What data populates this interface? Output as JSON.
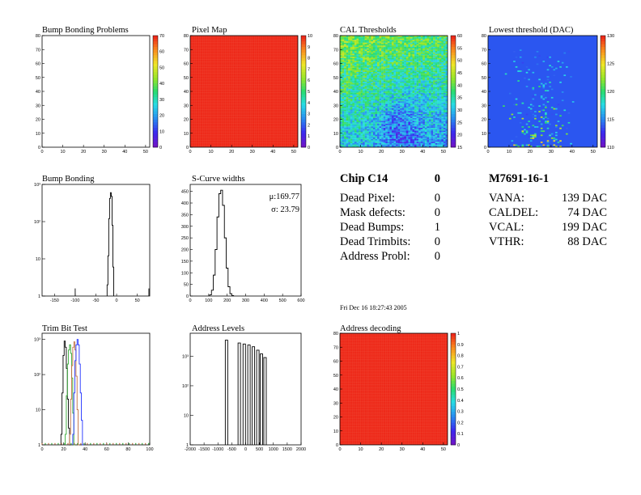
{
  "colors": {
    "hot_red": "#ee2a1a",
    "frame": "#000000",
    "trim_blue": "#2233ff",
    "trim_green": "#33aa33",
    "trim_orange": "#c07040",
    "low_bg": "#2b56f0"
  },
  "chart_data": [
    {
      "id": "bump-map",
      "type": "heatmap",
      "title": "Bump Bonding Problems",
      "x_ticks": [
        "0",
        "10",
        "20",
        "30",
        "40",
        "50"
      ],
      "y_ticks": [
        "0",
        "10",
        "20",
        "30",
        "40",
        "50",
        "60",
        "70",
        "80"
      ],
      "z_ticks": [
        "0",
        "10",
        "20",
        "30",
        "40",
        "50",
        "60",
        "70"
      ],
      "pattern": "empty",
      "xlim": [
        0,
        52
      ],
      "ylim": [
        0,
        80
      ]
    },
    {
      "id": "pixel-map",
      "type": "heatmap",
      "title": "Pixel Map",
      "x_ticks": [
        "0",
        "10",
        "20",
        "30",
        "40",
        "50"
      ],
      "y_ticks": [
        "0",
        "10",
        "20",
        "30",
        "40",
        "50",
        "60",
        "70",
        "80"
      ],
      "z_ticks": [
        "0",
        "1",
        "2",
        "3",
        "4",
        "5",
        "6",
        "7",
        "8",
        "9",
        "10"
      ],
      "pattern": "uniform-max",
      "xlim": [
        0,
        52
      ],
      "ylim": [
        0,
        80
      ]
    },
    {
      "id": "cal-map",
      "type": "heatmap",
      "title": "CAL Thresholds",
      "x_ticks": [
        "0",
        "10",
        "20",
        "30",
        "40",
        "50"
      ],
      "y_ticks": [
        "0",
        "10",
        "20",
        "30",
        "40",
        "50",
        "60",
        "70",
        "80"
      ],
      "z_ticks": [
        "15",
        "20",
        "25",
        "30",
        "35",
        "40",
        "45",
        "50",
        "55",
        "60"
      ],
      "pattern": "noisy-gradient",
      "xlim": [
        0,
        52
      ],
      "ylim": [
        0,
        80
      ]
    },
    {
      "id": "low-map",
      "type": "heatmap",
      "title": "Lowest threshold (DAC)",
      "x_ticks": [
        "0",
        "10",
        "20",
        "30",
        "40",
        "50"
      ],
      "y_ticks": [
        "0",
        "10",
        "20",
        "30",
        "40",
        "50",
        "60",
        "70",
        "80"
      ],
      "z_ticks": [
        "110",
        "115",
        "120",
        "125",
        "130"
      ],
      "pattern": "sparse-hotspots",
      "xlim": [
        0,
        52
      ],
      "ylim": [
        0,
        80
      ]
    },
    {
      "id": "bump-hist",
      "type": "line",
      "title": "Bump Bonding",
      "log_y": true,
      "x_ticks": [
        "-150",
        "-100",
        "-50",
        "0",
        "50"
      ],
      "y_ticks": [
        "1",
        "10",
        "10²",
        "10³"
      ],
      "xlim": [
        -180,
        80
      ],
      "ylim": [
        1,
        1000
      ],
      "x": [
        -22,
        -20,
        -18,
        -16,
        -14,
        -12,
        -10,
        -8
      ],
      "values": [
        2,
        12,
        120,
        420,
        600,
        480,
        80,
        6
      ]
    },
    {
      "id": "scurve-hist",
      "type": "line",
      "title": "S-Curve widths",
      "log_y": false,
      "x_ticks": [
        "0",
        "100",
        "200",
        "300",
        "400",
        "500",
        "600"
      ],
      "y_ticks": [
        "0",
        "50",
        "100",
        "150",
        "200",
        "250",
        "300",
        "350",
        "400",
        "450"
      ],
      "xlim": [
        0,
        600
      ],
      "ylim": [
        0,
        480
      ],
      "x": [
        110,
        120,
        130,
        140,
        150,
        160,
        170,
        180,
        190,
        200,
        210,
        220,
        230
      ],
      "values": [
        5,
        25,
        90,
        200,
        340,
        440,
        455,
        390,
        250,
        120,
        40,
        10,
        2
      ],
      "stats": {
        "mean": "μ:169.77",
        "sigma": "σ: 23.79"
      }
    },
    {
      "id": "trim-hist",
      "type": "line",
      "title": "Trim Bit Test",
      "log_y": true,
      "x_ticks": [
        "0",
        "20",
        "40",
        "60",
        "80",
        "100"
      ],
      "y_ticks": [
        "1",
        "10",
        "10²",
        "10³"
      ],
      "xlim": [
        0,
        100
      ],
      "ylim": [
        1,
        1500
      ],
      "series": [
        {
          "color": "#000000",
          "x": [
            18,
            19,
            20,
            21,
            22,
            23,
            24,
            25,
            26
          ],
          "values": [
            2,
            30,
            350,
            900,
            600,
            150,
            20,
            3,
            1
          ]
        },
        {
          "color": "#33aa33",
          "x": [
            22,
            23,
            24,
            25,
            26,
            27,
            28,
            29,
            30
          ],
          "values": [
            2,
            25,
            200,
            500,
            700,
            400,
            80,
            8,
            1
          ]
        },
        {
          "color": "#c07040",
          "x": [
            26,
            27,
            28,
            29,
            30,
            31,
            32,
            33,
            34
          ],
          "values": [
            2,
            20,
            180,
            600,
            850,
            500,
            90,
            10,
            1
          ]
        },
        {
          "color": "#2233ff",
          "x": [
            29,
            30,
            31,
            32,
            33,
            34,
            35,
            36,
            37,
            38
          ],
          "values": [
            2,
            30,
            250,
            700,
            1000,
            700,
            200,
            30,
            5,
            1
          ]
        }
      ]
    },
    {
      "id": "addr-hist",
      "type": "line",
      "title": "Address Levels",
      "log_y": true,
      "x_ticks": [
        "-2000",
        "-1500",
        "-1000",
        "-500",
        "0",
        "500",
        "1000",
        "1500",
        "2000"
      ],
      "y_ticks": [
        "1",
        "10",
        "10²",
        "10³"
      ],
      "xlim": [
        -2000,
        2000
      ],
      "ylim": [
        1,
        6000
      ],
      "peaks": [
        {
          "x": -690,
          "h": 3500
        },
        {
          "x": -230,
          "h": 2800
        },
        {
          "x": -50,
          "h": 2600
        },
        {
          "x": 120,
          "h": 2400
        },
        {
          "x": 280,
          "h": 2100
        },
        {
          "x": 440,
          "h": 1600
        },
        {
          "x": 570,
          "h": 1200
        },
        {
          "x": 700,
          "h": 900
        }
      ]
    },
    {
      "id": "addr-map",
      "type": "heatmap",
      "title": "Address decoding",
      "x_ticks": [
        "0",
        "10",
        "20",
        "30",
        "40",
        "50"
      ],
      "y_ticks": [
        "0",
        "10",
        "20",
        "30",
        "40",
        "50",
        "60",
        "70",
        "80"
      ],
      "z_ticks": [
        "0",
        "0.1",
        "0.2",
        "0.3",
        "0.4",
        "0.5",
        "0.6",
        "0.7",
        "0.8",
        "0.9",
        "1"
      ],
      "pattern": "uniform-max",
      "xlim": [
        0,
        52
      ],
      "ylim": [
        0,
        80
      ]
    }
  ],
  "chip": {
    "title": "Chip C14",
    "number": "0",
    "rows": [
      {
        "label": "Dead Pixel:",
        "value": "0"
      },
      {
        "label": "Mask defects:",
        "value": "0"
      },
      {
        "label": "Dead Bumps:",
        "value": "1"
      },
      {
        "label": "Dead Trimbits:",
        "value": "0"
      },
      {
        "label": "Address Probl:",
        "value": "0"
      }
    ]
  },
  "module": {
    "title": "M7691-16-1",
    "rows": [
      {
        "label": "VANA:",
        "value": "139 DAC"
      },
      {
        "label": "CALDEL:",
        "value": "74 DAC"
      },
      {
        "label": "VCAL:",
        "value": "199 DAC"
      },
      {
        "label": "VTHR:",
        "value": "88 DAC"
      }
    ]
  },
  "timestamp": "Fri Dec 16 18:27:43 2005"
}
